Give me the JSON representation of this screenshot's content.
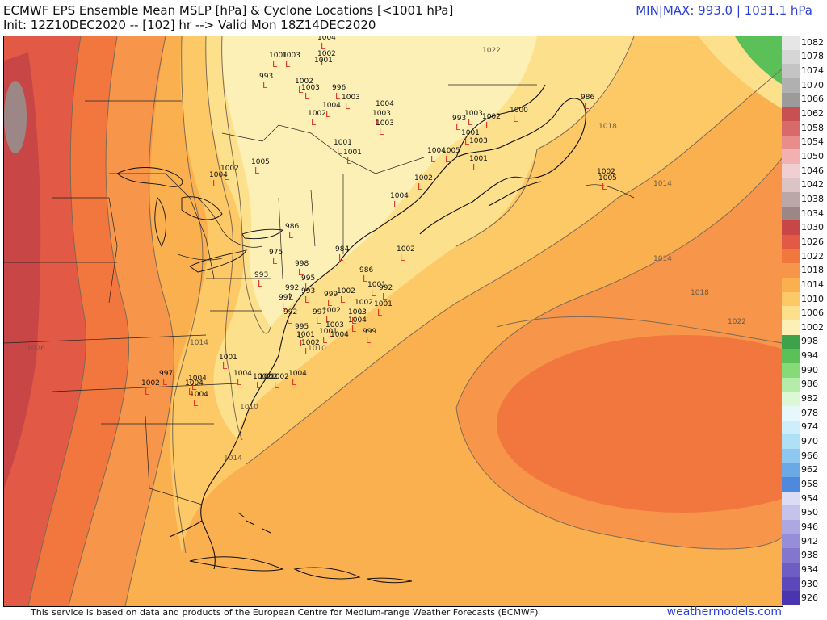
{
  "header": {
    "title": "ECMWF EPS Ensemble Mean MSLP [hPa] & Cyclone Locations [<1001 hPa]",
    "init_line": "Init: 12Z10DEC2020 -- [102] hr --> Valid Mon 18Z14DEC2020",
    "minmax": "MIN|MAX: 993.0 | 1031.1 hPa"
  },
  "footer": {
    "credit": "This service is based on data and products of the European Centre for Medium-range Weather Forecasts (ECMWF)",
    "brand": "weathermodels.com"
  },
  "isobar_labels": [
    {
      "text": "1026",
      "place": "west"
    },
    {
      "text": "1014",
      "place": "virginia"
    },
    {
      "text": "1010",
      "place": "carolina"
    },
    {
      "text": "1014",
      "place": "south"
    },
    {
      "text": "1022",
      "place": "atlantic-high"
    },
    {
      "text": "1018",
      "place": "east-1"
    },
    {
      "text": "1014",
      "place": "east-2"
    },
    {
      "text": "1018",
      "place": "newfoundland"
    },
    {
      "text": "1014",
      "place": "far-east"
    },
    {
      "text": "1022",
      "place": "north"
    },
    {
      "text": "1010",
      "place": "nh"
    }
  ],
  "cyclones": [
    {
      "v": "1004"
    },
    {
      "v": "1001"
    },
    {
      "v": "1003"
    },
    {
      "v": "1002"
    },
    {
      "v": "1001"
    },
    {
      "v": "993"
    },
    {
      "v": "1002"
    },
    {
      "v": "1003"
    },
    {
      "v": "996"
    },
    {
      "v": "1003"
    },
    {
      "v": "1004"
    },
    {
      "v": "1003"
    },
    {
      "v": "1003"
    },
    {
      "v": "1004"
    },
    {
      "v": "1002"
    },
    {
      "v": "1001"
    },
    {
      "v": "1001"
    },
    {
      "v": "1005"
    },
    {
      "v": "1002"
    },
    {
      "v": "1004"
    },
    {
      "v": "1002"
    },
    {
      "v": "1004"
    },
    {
      "v": "993"
    },
    {
      "v": "1003"
    },
    {
      "v": "1000"
    },
    {
      "v": "1002"
    },
    {
      "v": "986"
    },
    {
      "v": "1001"
    },
    {
      "v": "1002"
    },
    {
      "v": "1005"
    },
    {
      "v": "1004"
    },
    {
      "v": "1005"
    },
    {
      "v": "1001"
    },
    {
      "v": "1003"
    },
    {
      "v": "986"
    },
    {
      "v": "975"
    },
    {
      "v": "984"
    },
    {
      "v": "998"
    },
    {
      "v": "1002"
    },
    {
      "v": "986"
    },
    {
      "v": "993"
    },
    {
      "v": "995"
    },
    {
      "v": "992"
    },
    {
      "v": "993"
    },
    {
      "v": "999"
    },
    {
      "v": "1002"
    },
    {
      "v": "1001"
    },
    {
      "v": "992"
    },
    {
      "v": "1002"
    },
    {
      "v": "1001"
    },
    {
      "v": "997"
    },
    {
      "v": "992"
    },
    {
      "v": "995"
    },
    {
      "v": "997"
    },
    {
      "v": "1002"
    },
    {
      "v": "1003"
    },
    {
      "v": "1004"
    },
    {
      "v": "1003"
    },
    {
      "v": "999"
    },
    {
      "v": "1001"
    },
    {
      "v": "1002"
    },
    {
      "v": "1001"
    },
    {
      "v": "1004"
    },
    {
      "v": "1001"
    },
    {
      "v": "1004"
    },
    {
      "v": "1002"
    },
    {
      "v": "1002"
    },
    {
      "v": "1004"
    },
    {
      "v": "1004"
    },
    {
      "v": "997"
    },
    {
      "v": "1004"
    },
    {
      "v": "1002"
    },
    {
      "v": "1004"
    },
    {
      "v": "1002"
    }
  ],
  "colorbar": [
    {
      "v": "1082",
      "c": "#e6e6e6"
    },
    {
      "v": "1078",
      "c": "#d6d6d6"
    },
    {
      "v": "1074",
      "c": "#c4c4c4"
    },
    {
      "v": "1070",
      "c": "#b0b0b0"
    },
    {
      "v": "1066",
      "c": "#9b9b9b"
    },
    {
      "v": "1062",
      "c": "#c95050"
    },
    {
      "v": "1058",
      "c": "#d86a6a"
    },
    {
      "v": "1054",
      "c": "#e88c8c"
    },
    {
      "v": "1050",
      "c": "#f2b0b0"
    },
    {
      "v": "1046",
      "c": "#efcfcf"
    },
    {
      "v": "1042",
      "c": "#dcc4c4"
    },
    {
      "v": "1038",
      "c": "#bba7a7"
    },
    {
      "v": "1034",
      "c": "#9c8686"
    },
    {
      "v": "1030",
      "c": "#c84646"
    },
    {
      "v": "1026",
      "c": "#e25a46"
    },
    {
      "v": "1022",
      "c": "#f2773f"
    },
    {
      "v": "1018",
      "c": "#f7964a"
    },
    {
      "v": "1014",
      "c": "#fbb04f"
    },
    {
      "v": "1010",
      "c": "#fdc866"
    },
    {
      "v": "1006",
      "c": "#fde08c"
    },
    {
      "v": "1002",
      "c": "#fdf0b6"
    },
    {
      "v": "998",
      "c": "#3ea24a"
    },
    {
      "v": "994",
      "c": "#5cc058"
    },
    {
      "v": "990",
      "c": "#86da78"
    },
    {
      "v": "986",
      "c": "#b6ecaa"
    },
    {
      "v": "982",
      "c": "#dcf8d6"
    },
    {
      "v": "978",
      "c": "#e6f8fc"
    },
    {
      "v": "974",
      "c": "#cdeefa"
    },
    {
      "v": "970",
      "c": "#aee0f6"
    },
    {
      "v": "966",
      "c": "#8ec8f0"
    },
    {
      "v": "962",
      "c": "#6aa8e6"
    },
    {
      "v": "958",
      "c": "#4d8ade"
    },
    {
      "v": "954",
      "c": "#dcdcf4"
    },
    {
      "v": "950",
      "c": "#c6c2ec"
    },
    {
      "v": "946",
      "c": "#aea8e2"
    },
    {
      "v": "942",
      "c": "#968ed8"
    },
    {
      "v": "938",
      "c": "#8276ce"
    },
    {
      "v": "934",
      "c": "#6e5ec4"
    },
    {
      "v": "930",
      "c": "#5c48ba"
    },
    {
      "v": "926",
      "c": "#4a34b0"
    }
  ]
}
